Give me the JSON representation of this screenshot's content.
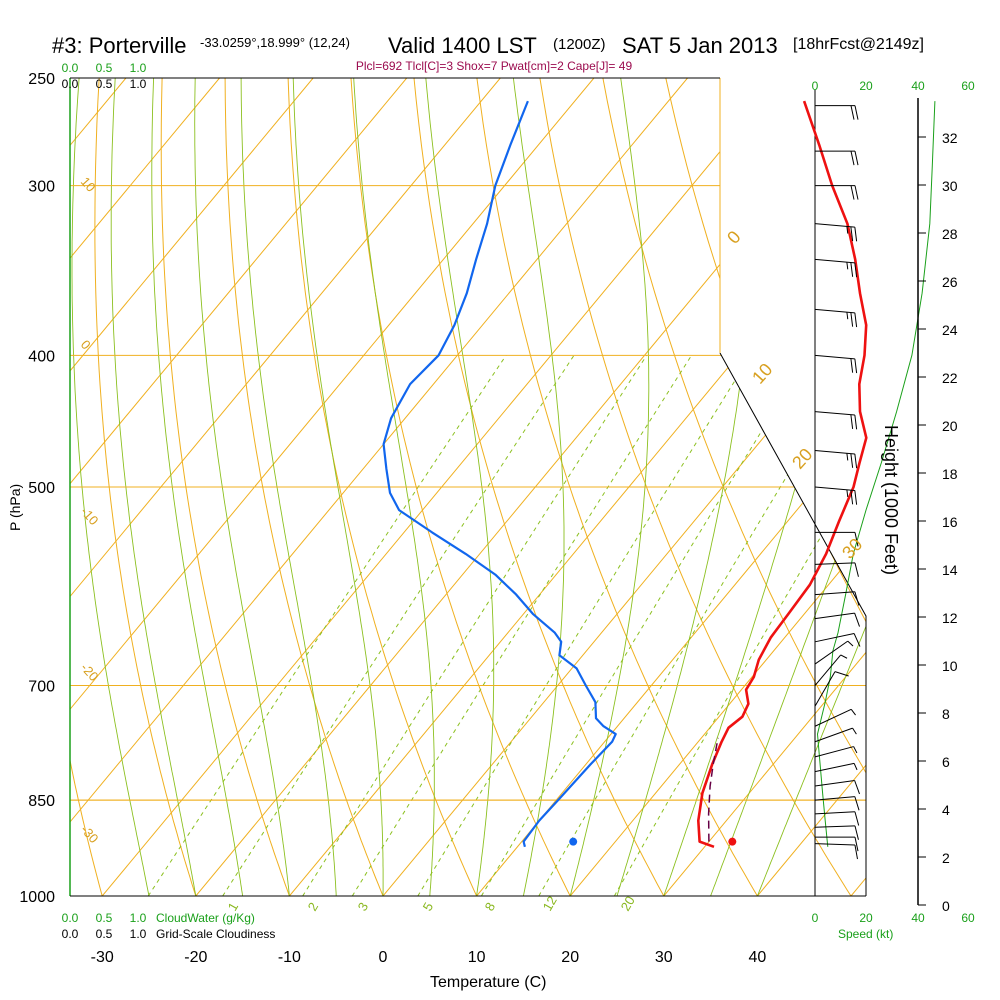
{
  "title": {
    "station": "#3: Porterville",
    "coords": "-33.0259°,18.999° (12,24)",
    "valid": "Valid 1400 LST",
    "utc": "(1200Z)",
    "date": "SAT 5 Jan 2013",
    "fcst": "[18hrFcst@2149z]"
  },
  "indices": "Plcl=692 Tlcl[C]=3 Shox=7 Pwat[cm]=2 Cape[J]= 49",
  "chart_data": {
    "type": "skew-t",
    "x_axis": {
      "label": "Temperature (C)",
      "ticks": [
        -30,
        -20,
        -10,
        0,
        10,
        20,
        30,
        40
      ],
      "range": [
        -35,
        52
      ]
    },
    "y_axis": {
      "label": "P (hPa)",
      "ticks": [
        250,
        300,
        400,
        500,
        700,
        850,
        1000
      ]
    },
    "height_axis": {
      "label": "Height (1000 Feet)",
      "ticks": [
        0,
        2,
        4,
        6,
        8,
        10,
        12,
        14,
        16,
        18,
        20,
        22,
        24,
        26,
        28,
        30,
        32
      ]
    },
    "cloud_scale": {
      "water_ticks": [
        "0.0",
        "0.5",
        "1.0"
      ],
      "cover_ticks": [
        "0.0",
        "0.5",
        "1.0"
      ],
      "water_label": "CloudWater (g/Kg)",
      "cover_label": "Grid-Scale Cloudiness"
    },
    "speed_axis": {
      "label": "Speed (kt)",
      "ticks": [
        "0",
        "20",
        "40",
        "60"
      ]
    },
    "isotherm_labels": [
      "10",
      "0",
      "-10",
      "-20",
      "-30"
    ],
    "dry_adiabat_labels": [
      "0",
      "10",
      "20",
      "30"
    ],
    "mixing_ratio_labels": [
      "1",
      "2",
      "3",
      "5",
      "8",
      "12",
      "20"
    ],
    "temperature_profile": [
      {
        "p": 920,
        "t": 31.0
      },
      {
        "p": 912,
        "t": 29.0
      },
      {
        "p": 880,
        "t": 27.0
      },
      {
        "p": 840,
        "t": 25.0
      },
      {
        "p": 800,
        "t": 23.5
      },
      {
        "p": 770,
        "t": 22.5
      },
      {
        "p": 752,
        "t": 22.0
      },
      {
        "p": 738,
        "t": 22.5
      },
      {
        "p": 722,
        "t": 22.0
      },
      {
        "p": 705,
        "t": 20.5
      },
      {
        "p": 690,
        "t": 20.2
      },
      {
        "p": 670,
        "t": 19.2
      },
      {
        "p": 645,
        "t": 18.5
      },
      {
        "p": 620,
        "t": 18.3
      },
      {
        "p": 590,
        "t": 18.0
      },
      {
        "p": 560,
        "t": 17.0
      },
      {
        "p": 530,
        "t": 15.5
      },
      {
        "p": 500,
        "t": 14.0
      },
      {
        "p": 480,
        "t": 12.5
      },
      {
        "p": 460,
        "t": 11.0
      },
      {
        "p": 440,
        "t": 8.0
      },
      {
        "p": 420,
        "t": 5.5
      },
      {
        "p": 400,
        "t": 3.5
      },
      {
        "p": 380,
        "t": 1.0
      },
      {
        "p": 360,
        "t": -2.5
      },
      {
        "p": 340,
        "t": -6.0
      },
      {
        "p": 320,
        "t": -10.0
      },
      {
        "p": 300,
        "t": -15.0
      },
      {
        "p": 280,
        "t": -20.0
      },
      {
        "p": 260,
        "t": -25.5
      }
    ],
    "dewpoint_profile": [
      {
        "p": 920,
        "t": 10.8
      },
      {
        "p": 912,
        "t": 10.2
      },
      {
        "p": 880,
        "t": 10.0
      },
      {
        "p": 850,
        "t": 10.2
      },
      {
        "p": 800,
        "t": 10.5
      },
      {
        "p": 770,
        "t": 10.8
      },
      {
        "p": 760,
        "t": 10.5
      },
      {
        "p": 750,
        "t": 8.5
      },
      {
        "p": 740,
        "t": 7.0
      },
      {
        "p": 720,
        "t": 5.5
      },
      {
        "p": 700,
        "t": 3.0
      },
      {
        "p": 680,
        "t": 0.5
      },
      {
        "p": 665,
        "t": -2.5
      },
      {
        "p": 650,
        "t": -3.5
      },
      {
        "p": 640,
        "t": -5.0
      },
      {
        "p": 620,
        "t": -9.0
      },
      {
        "p": 600,
        "t": -12.5
      },
      {
        "p": 580,
        "t": -16.5
      },
      {
        "p": 560,
        "t": -21.5
      },
      {
        "p": 540,
        "t": -27.0
      },
      {
        "p": 520,
        "t": -32.5
      },
      {
        "p": 505,
        "t": -35.0
      },
      {
        "p": 485,
        "t": -37.5
      },
      {
        "p": 465,
        "t": -40.0
      },
      {
        "p": 445,
        "t": -41.5
      },
      {
        "p": 420,
        "t": -42.5
      },
      {
        "p": 400,
        "t": -42.0
      },
      {
        "p": 380,
        "t": -43.0
      },
      {
        "p": 360,
        "t": -44.5
      },
      {
        "p": 340,
        "t": -46.5
      },
      {
        "p": 320,
        "t": -48.5
      },
      {
        "p": 300,
        "t": -51.0
      },
      {
        "p": 280,
        "t": -53.0
      },
      {
        "p": 260,
        "t": -55.0
      }
    ],
    "parcel_path": [
      {
        "p": 912,
        "t": 30.0
      },
      {
        "p": 870,
        "t": 27.5
      },
      {
        "p": 830,
        "t": 25.2
      },
      {
        "p": 800,
        "t": 23.6
      },
      {
        "p": 775,
        "t": 22.3
      },
      {
        "p": 765,
        "t": 21.8
      }
    ],
    "surface_temperature": 32.5,
    "surface_dewpoint": 15.5,
    "surface_pressure": 912,
    "wind_barbs": [
      {
        "p": 262,
        "spd": 20,
        "dir": 270
      },
      {
        "p": 283,
        "spd": 20,
        "dir": 270
      },
      {
        "p": 300,
        "spd": 20,
        "dir": 270
      },
      {
        "p": 320,
        "spd": 25,
        "dir": 275
      },
      {
        "p": 340,
        "spd": 25,
        "dir": 275
      },
      {
        "p": 370,
        "spd": 25,
        "dir": 275
      },
      {
        "p": 400,
        "spd": 20,
        "dir": 275
      },
      {
        "p": 440,
        "spd": 20,
        "dir": 275
      },
      {
        "p": 470,
        "spd": 25,
        "dir": 275
      },
      {
        "p": 500,
        "spd": 25,
        "dir": 275
      },
      {
        "p": 540,
        "spd": 10,
        "dir": 270
      },
      {
        "p": 570,
        "spd": 10,
        "dir": 268
      },
      {
        "p": 600,
        "spd": 10,
        "dir": 266
      },
      {
        "p": 625,
        "spd": 10,
        "dir": 262
      },
      {
        "p": 650,
        "spd": 10,
        "dir": 258
      },
      {
        "p": 675,
        "spd": 5,
        "dir": 235
      },
      {
        "p": 700,
        "spd": 5,
        "dir": 220
      },
      {
        "p": 725,
        "spd": 10,
        "dir": 210
      },
      {
        "p": 750,
        "spd": 5,
        "dir": 245
      },
      {
        "p": 770,
        "spd": 5,
        "dir": 250
      },
      {
        "p": 790,
        "spd": 5,
        "dir": 255
      },
      {
        "p": 810,
        "spd": 5,
        "dir": 258
      },
      {
        "p": 830,
        "spd": 10,
        "dir": 262
      },
      {
        "p": 850,
        "spd": 10,
        "dir": 265
      },
      {
        "p": 870,
        "spd": 10,
        "dir": 267
      },
      {
        "p": 890,
        "spd": 10,
        "dir": 268
      },
      {
        "p": 905,
        "spd": 10,
        "dir": 270
      },
      {
        "p": 915,
        "spd": 10,
        "dir": 272
      }
    ],
    "wind_speed_profile": [
      {
        "p": 920,
        "spd": 5
      },
      {
        "p": 880,
        "spd": 4
      },
      {
        "p": 840,
        "spd": 3
      },
      {
        "p": 800,
        "spd": 2
      },
      {
        "p": 760,
        "spd": 1
      },
      {
        "p": 720,
        "spd": 4
      },
      {
        "p": 690,
        "spd": 6
      },
      {
        "p": 660,
        "spd": 7
      },
      {
        "p": 640,
        "spd": 9
      },
      {
        "p": 600,
        "spd": 12
      },
      {
        "p": 560,
        "spd": 15
      },
      {
        "p": 520,
        "spd": 20
      },
      {
        "p": 480,
        "spd": 26
      },
      {
        "p": 440,
        "spd": 32
      },
      {
        "p": 400,
        "spd": 38
      },
      {
        "p": 360,
        "spd": 42
      },
      {
        "p": 320,
        "spd": 45
      },
      {
        "p": 290,
        "spd": 46
      },
      {
        "p": 260,
        "spd": 47
      }
    ],
    "colors": {
      "isobar": "#f0b020",
      "isotherm": "#f0b020",
      "dry_adiabat": "#f0b020",
      "moist_adiabat": "#8cc020",
      "mixing_ratio": "#8cc020",
      "temperature": "#ee1111",
      "dewpoint": "#1166ee",
      "parcel": "#660044",
      "wind_speed": "#1aa01a"
    }
  }
}
